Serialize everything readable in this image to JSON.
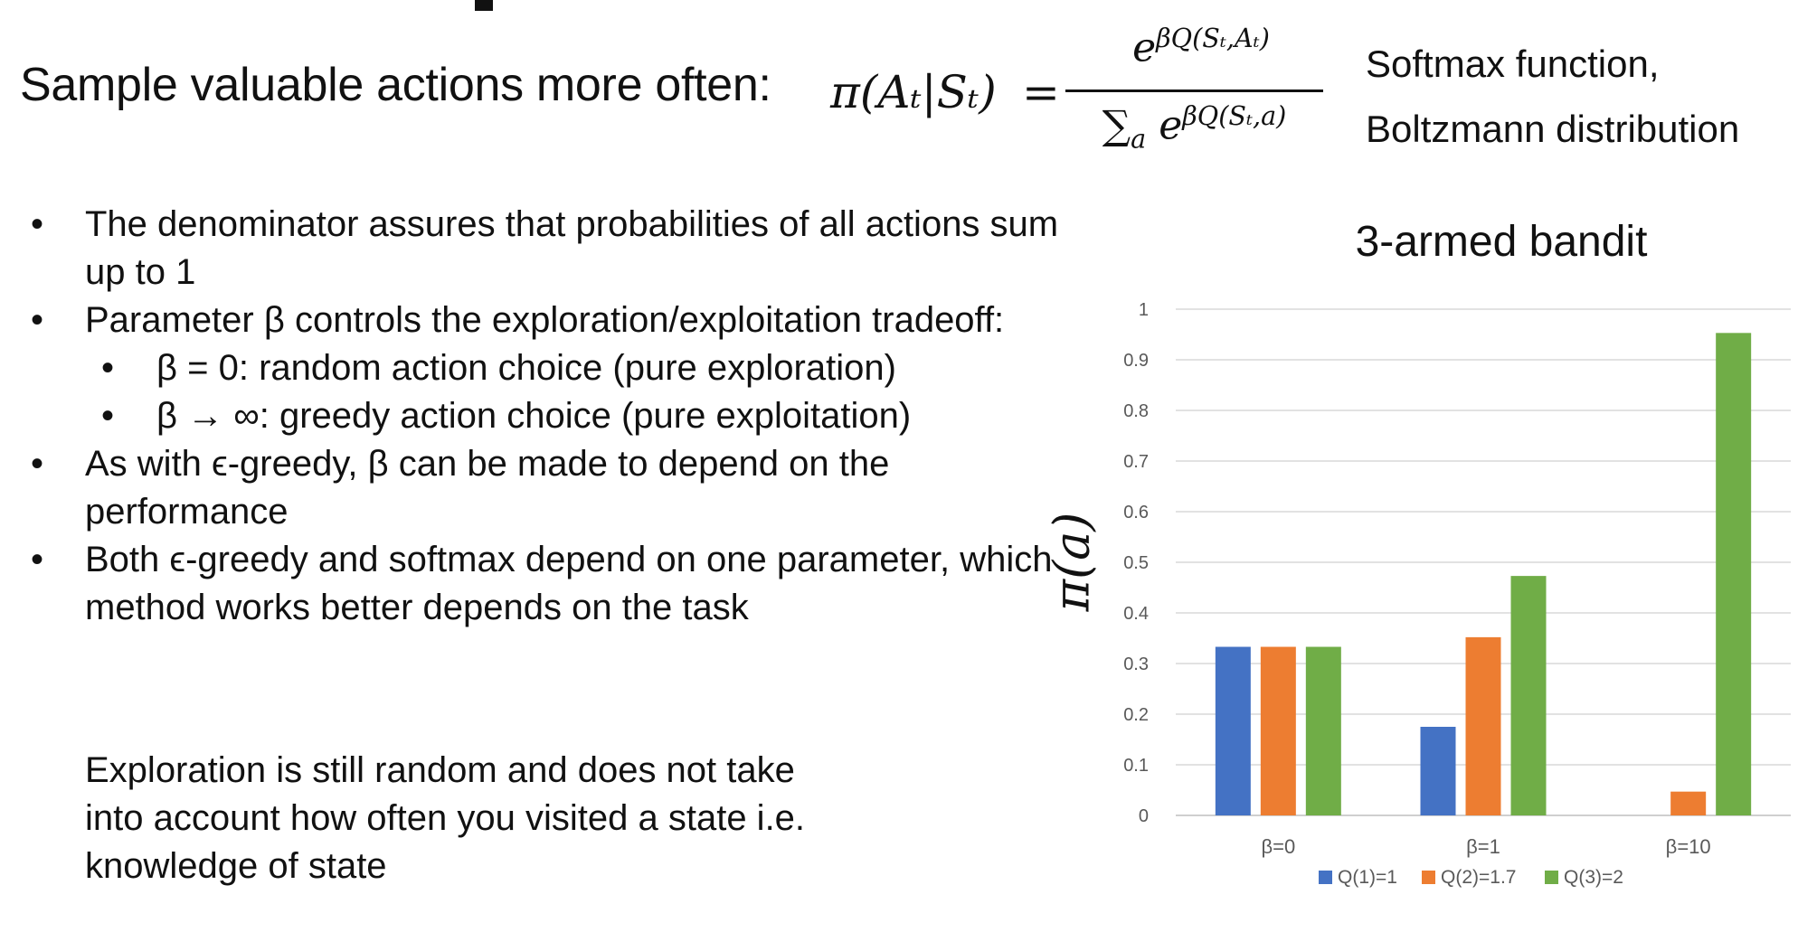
{
  "intro": "Sample valuable actions more often:",
  "formula": {
    "lhs": "π(Aₜ|Sₜ)",
    "eq": "=",
    "numerator": "e",
    "numerator_exp": "βQ(Sₜ,Aₜ)",
    "denominator_sum": "∑",
    "denominator_sub": "a",
    "denominator_e": "e",
    "denominator_exp": "βQ(Sₜ,a)"
  },
  "formula_caption": [
    "Softmax function,",
    "Boltzmann distribution"
  ],
  "bullets": [
    {
      "text": "The denominator assures that probabilities of all actions sum up to 1",
      "level": 1
    },
    {
      "text": "Parameter β controls the exploration/exploitation tradeoff:",
      "level": 1
    },
    {
      "text": "β = 0: random action choice (pure exploration)",
      "level": 2
    },
    {
      "text": "β → ∞: greedy action choice (pure exploitation)",
      "level": 2
    },
    {
      "text": "As with ϵ-greedy, β can be made to depend on the performance",
      "level": 1
    },
    {
      "text": "Both ϵ-greedy and softmax depend on one parameter, which method works better depends on the task",
      "level": 1
    }
  ],
  "note": "Exploration is still random and does not take into account how often you visited a state i.e. knowledge of state",
  "chart_data": {
    "type": "bar",
    "title": "3-armed bandit",
    "ylabel": "π(a)",
    "xlabel": "",
    "categories": [
      "β=0",
      "β=1",
      "β=10"
    ],
    "series": [
      {
        "name": "Q(1)=1",
        "color": "#4472C4",
        "values": [
          0.333,
          0.175,
          0.0
        ]
      },
      {
        "name": "Q(2)=1.7",
        "color": "#ED7D31",
        "values": [
          0.333,
          0.352,
          0.047
        ]
      },
      {
        "name": "Q(3)=2",
        "color": "#70AD47",
        "values": [
          0.333,
          0.473,
          0.953
        ]
      }
    ],
    "ylim": [
      0,
      1
    ],
    "yticks": [
      "0",
      "0.1",
      "0.2",
      "0.3",
      "0.4",
      "0.5",
      "0.6",
      "0.7",
      "0.8",
      "0.9",
      "1"
    ],
    "grid": true,
    "legend": "bottom"
  }
}
